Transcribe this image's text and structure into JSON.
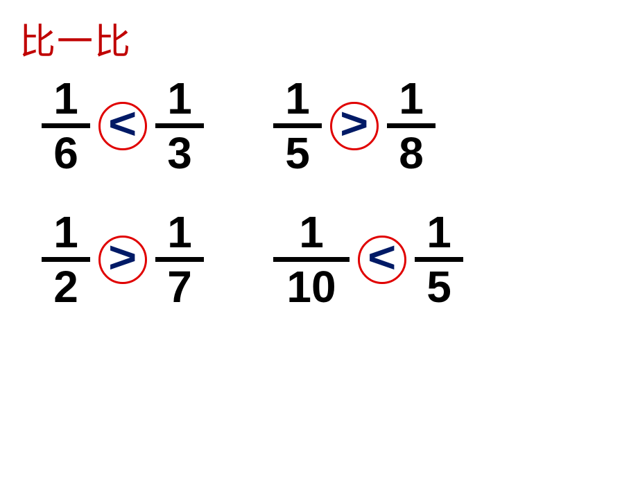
{
  "title": {
    "text": "比一比",
    "color": "#c00000",
    "fontsize": 52
  },
  "operator_style": {
    "circle_border_color": "#e00000",
    "circle_border_width": 3,
    "symbol_color": "#001a66"
  },
  "comparisons": [
    [
      {
        "left_num": "1",
        "left_den": "6",
        "op": "<",
        "right_num": "1",
        "right_den": "3"
      },
      {
        "left_num": "1",
        "left_den": "5",
        "op": ">",
        "right_num": "1",
        "right_den": "8"
      }
    ],
    [
      {
        "left_num": "1",
        "left_den": "2",
        "op": ">",
        "right_num": "1",
        "right_den": "7"
      },
      {
        "left_num": "1",
        "left_den": "10",
        "op": "<",
        "right_num": "1",
        "right_den": "5",
        "left_wide": true
      }
    ]
  ]
}
